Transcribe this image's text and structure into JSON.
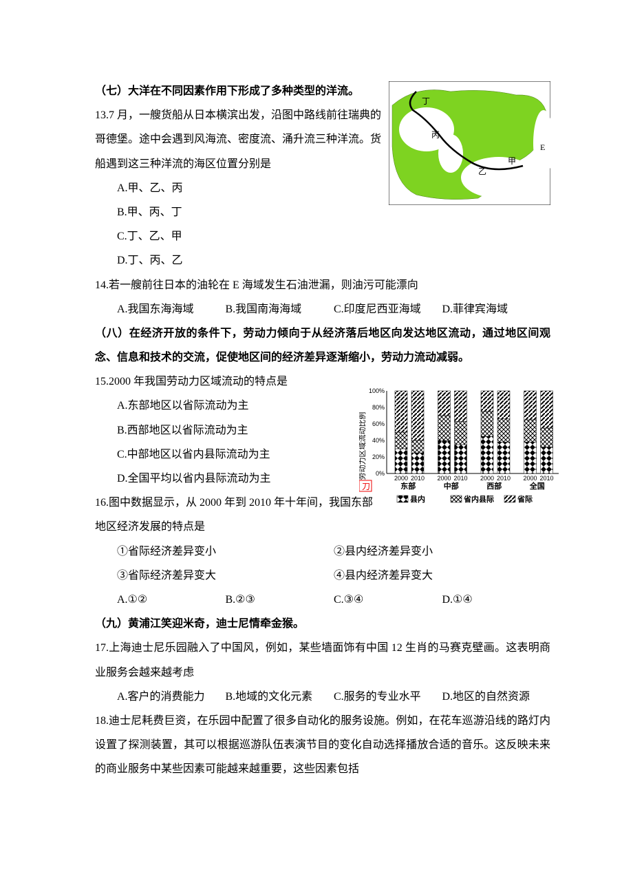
{
  "section7": {
    "header": "（七）大洋在不同因素作用下形成了多种类型的洋流。",
    "q13_text": "13.7 月，一艘货船从日本横滨出发，沿图中路线前往瑞典的哥德堡。途中会遇到风海流、密度流、涌升流三种洋流。货船遇到这三种洋流的海区位置分别是",
    "q13_a": "A.甲、乙、丙",
    "q13_b": "B.甲、丙、丁",
    "q13_c": "C.丁、乙、甲",
    "q13_d": "D.丁、丙、乙",
    "q14_text": "14.若一艘前往日本的油轮在 E 海域发生石油泄漏，则油污可能漂向",
    "q14_a": "A.我国东海海域",
    "q14_b": "B.我国南海海域",
    "q14_c": "C.印度尼西亚海域",
    "q14_d": "D.菲律宾海域"
  },
  "section8": {
    "header": "（八）在经济开放的条件下，劳动力倾向于从经济落后地区向发达地区流动，通过地区间观念、信息和技术的交流，促使地区间的经济差异逐渐缩小，劳动力流动减弱。",
    "q15_text": "15.2000 年我国劳动力区域流动的特点是",
    "q15_a": "A.东部地区以省际流动为主",
    "q15_b": "B.西部地区以省际流动为主",
    "q15_c": "C.中部地区以省内县际流动为主",
    "q15_d": "D.全国平均以省内县际流动为主",
    "q16_text": "16.图中数据显示，从 2000 年到 2010 年十年间，我国东部地区经济发展的特点是",
    "q16_c1": "①省际经济差异变小",
    "q16_c2": "②县内经济差异变小",
    "q16_c3": "③省际经济差异变大",
    "q16_c4": "④县内经济差异变大",
    "q16_a": "A.①②",
    "q16_b": "B.②③",
    "q16_c": "C.③④",
    "q16_d": "D.①④"
  },
  "section9": {
    "header": "（九）黄浦江笑迎米奇，迪士尼情牵金猴。",
    "q17_text": "17.上海迪士尼乐园融入了中国风，例如，某些墙面饰有中国 12 生肖的马赛克壁画。这表明商业服务会越来越考虑",
    "q17_a": "A.客户的消费能力",
    "q17_b": "B.地域的文化元素",
    "q17_c": "C.服务的专业水平",
    "q17_d": "D.地区的自然资源",
    "q18_text": "18.迪士尼耗费巨资，在乐园中配置了很多自动化的服务设施。例如，在花车巡游沿线的路灯内设置了探测装置，其可以根据巡游队伍表演节目的变化自动选择播放合适的音乐。这反映未来的商业服务中某些因素可能越来越重要，这些因素包括"
  },
  "map": {
    "land_color": "#7ed321",
    "sea_color": "#ffffff",
    "border_color": "#000000",
    "route_color": "#000000",
    "labels": {
      "jia": "甲",
      "yi": "乙",
      "bing": "丙",
      "ding": "丁",
      "E": "E"
    }
  },
  "chart": {
    "type": "stacked-bar",
    "background_color": "#ffffff",
    "border_color": "#000000",
    "y_label": "劳动力区域流动比例",
    "y_ticks": [
      "0%",
      "20%",
      "40%",
      "60%",
      "80%",
      "100%"
    ],
    "ylim": [
      0,
      100
    ],
    "groups": [
      "东部",
      "中部",
      "西部",
      "全国"
    ],
    "years": [
      "2000",
      "2010"
    ],
    "legend": {
      "county": "县内",
      "inter_county": "省内县际",
      "inter_province": "省际"
    },
    "data": {
      "东部": {
        "2000": [
          30,
          20,
          50
        ],
        "2010": [
          25,
          15,
          60
        ]
      },
      "中部": {
        "2000": [
          40,
          30,
          30
        ],
        "2010": [
          35,
          28,
          37
        ]
      },
      "西部": {
        "2000": [
          45,
          30,
          25
        ],
        "2010": [
          38,
          28,
          34
        ]
      },
      "全国": {
        "2000": [
          38,
          27,
          35
        ],
        "2010": [
          32,
          23,
          45
        ]
      }
    },
    "patterns": {
      "county": {
        "type": "diamond",
        "color": "#000000"
      },
      "inter_county": {
        "type": "crosshatch",
        "color": "#000000"
      },
      "inter_province": {
        "type": "diagonal",
        "color": "#000000"
      }
    },
    "del_mark": "刀"
  }
}
